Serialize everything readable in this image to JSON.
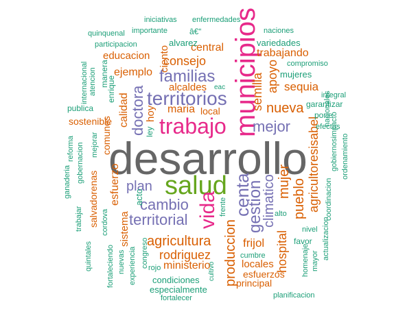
{
  "palette": {
    "teal": "#1b9e77",
    "orange": "#d95f02",
    "purple": "#7570b3",
    "magenta": "#e7298a",
    "green": "#66a61e",
    "gray": "#666666"
  },
  "words": [
    {
      "text": "desarrollo",
      "color": "gray"
    },
    {
      "text": "salud",
      "color": "green"
    },
    {
      "text": "municipios",
      "color": "magenta"
    },
    {
      "text": "trabajo",
      "color": "magenta"
    },
    {
      "text": "vida",
      "color": "magenta"
    },
    {
      "text": "territorios",
      "color": "purple"
    },
    {
      "text": "familias",
      "color": "purple"
    },
    {
      "text": "cambio",
      "color": "purple"
    },
    {
      "text": "territorial",
      "color": "purple"
    },
    {
      "text": "mejor",
      "color": "purple"
    },
    {
      "text": "plan",
      "color": "purple"
    },
    {
      "text": "centa",
      "color": "purple"
    },
    {
      "text": "gestion",
      "color": "purple"
    },
    {
      "text": "doctora",
      "color": "purple"
    },
    {
      "text": "climatico",
      "color": "purple"
    },
    {
      "text": "agricultura",
      "color": "orange"
    },
    {
      "text": "rodriguez",
      "color": "orange"
    },
    {
      "text": "produccion",
      "color": "orange"
    },
    {
      "text": "nueva",
      "color": "orange"
    },
    {
      "text": "semilla",
      "color": "orange"
    },
    {
      "text": "apoyo",
      "color": "orange"
    },
    {
      "text": "pueblo",
      "color": "orange"
    },
    {
      "text": "mujer",
      "color": "orange"
    },
    {
      "text": "hospital",
      "color": "orange"
    },
    {
      "text": "agricultoresisabel",
      "color": "orange"
    },
    {
      "text": "consejo",
      "color": "orange"
    },
    {
      "text": "sequia",
      "color": "orange"
    },
    {
      "text": "frijol",
      "color": "orange"
    },
    {
      "text": "ministerio",
      "color": "orange"
    },
    {
      "text": "calidad",
      "color": "orange"
    },
    {
      "text": "ejemplo",
      "color": "orange"
    },
    {
      "text": "maria",
      "color": "orange"
    },
    {
      "text": "hoy",
      "color": "orange"
    },
    {
      "text": "local",
      "color": "orange"
    },
    {
      "text": "ciento",
      "color": "orange"
    },
    {
      "text": "alcaldes",
      "color": "orange"
    },
    {
      "text": "central",
      "color": "orange"
    },
    {
      "text": "trabajando",
      "color": "orange"
    },
    {
      "text": "educacion",
      "color": "orange"
    },
    {
      "text": "sostenible",
      "color": "orange"
    },
    {
      "text": "comunes",
      "color": "orange"
    },
    {
      "text": "esfuerzo",
      "color": "orange"
    },
    {
      "text": "sistema",
      "color": "orange"
    },
    {
      "text": "salvadorenas",
      "color": "orange"
    },
    {
      "text": "locales",
      "color": "orange"
    },
    {
      "text": "esfuerzos",
      "color": "orange"
    },
    {
      "text": "principal",
      "color": "orange"
    },
    {
      "text": "alvarez",
      "color": "teal"
    },
    {
      "text": "variedades",
      "color": "teal"
    },
    {
      "text": "mujeres",
      "color": "teal"
    },
    {
      "text": "garantizar",
      "color": "teal"
    },
    {
      "text": "pone",
      "color": "teal"
    },
    {
      "text": "efectos",
      "color": "teal"
    },
    {
      "text": "gobiernosimpacto",
      "color": "teal"
    },
    {
      "text": "ordenamiento",
      "color": "teal"
    },
    {
      "text": "integral",
      "color": "teal"
    },
    {
      "text": "compromiso",
      "color": "teal"
    },
    {
      "text": "nacionales",
      "color": "teal"
    },
    {
      "text": "naciones",
      "color": "teal"
    },
    {
      "text": "enfermedades",
      "color": "teal"
    },
    {
      "text": "iniciativas",
      "color": "teal"
    },
    {
      "text": "importante",
      "color": "teal"
    },
    {
      "text": "quinquenal",
      "color": "teal"
    },
    {
      "text": "participacion",
      "color": "teal"
    },
    {
      "text": "â€“",
      "color": "teal"
    },
    {
      "text": "internacional",
      "color": "teal"
    },
    {
      "text": "atencion",
      "color": "teal"
    },
    {
      "text": "manera",
      "color": "teal"
    },
    {
      "text": "enrique",
      "color": "teal"
    },
    {
      "text": "publica",
      "color": "teal"
    },
    {
      "text": "ley",
      "color": "teal"
    },
    {
      "text": "mejorar",
      "color": "teal"
    },
    {
      "text": "reforma",
      "color": "teal"
    },
    {
      "text": "gobernacion",
      "color": "teal"
    },
    {
      "text": "ganaderia",
      "color": "teal"
    },
    {
      "text": "trabajar",
      "color": "teal"
    },
    {
      "text": "cordova",
      "color": "teal"
    },
    {
      "text": "acto",
      "color": "teal"
    },
    {
      "text": "quintales",
      "color": "teal"
    },
    {
      "text": "fortaleciendo",
      "color": "teal"
    },
    {
      "text": "nuevas",
      "color": "teal"
    },
    {
      "text": "experiencia",
      "color": "teal"
    },
    {
      "text": "congreso",
      "color": "teal"
    },
    {
      "text": "rojo",
      "color": "teal"
    },
    {
      "text": "condiciones",
      "color": "teal"
    },
    {
      "text": "especialmente",
      "color": "teal"
    },
    {
      "text": "fortalecer",
      "color": "teal"
    },
    {
      "text": "cultivo",
      "color": "teal"
    },
    {
      "text": "cumbre",
      "color": "teal"
    },
    {
      "text": "frente",
      "color": "teal"
    },
    {
      "text": "alto",
      "color": "teal"
    },
    {
      "text": "eac",
      "color": "teal"
    },
    {
      "text": "favor",
      "color": "teal"
    },
    {
      "text": "nivel",
      "color": "teal"
    },
    {
      "text": "homenaje",
      "color": "teal"
    },
    {
      "text": "mayor",
      "color": "teal"
    },
    {
      "text": "actualizacion",
      "color": "teal"
    },
    {
      "text": "coordinacion",
      "color": "teal"
    },
    {
      "text": "planificacion",
      "color": "teal"
    }
  ]
}
